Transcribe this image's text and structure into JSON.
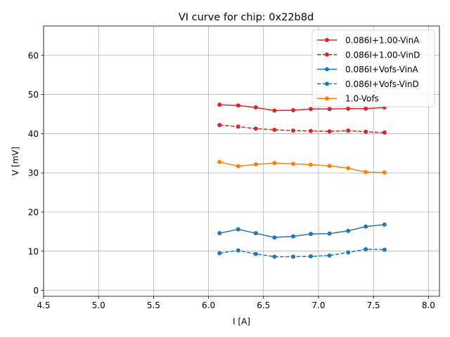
{
  "chart_data": {
    "type": "line",
    "title": "VI curve for chip: 0x22b8d",
    "xlabel": "I [A]",
    "ylabel": "V [mV]",
    "xlim": [
      4.5,
      8.1
    ],
    "ylim": [
      -1.5,
      67.5
    ],
    "xticks": [
      4.5,
      5.0,
      5.5,
      6.0,
      6.5,
      7.0,
      7.5,
      8.0
    ],
    "xtick_labels": [
      "4.5",
      "5.0",
      "5.5",
      "6.0",
      "6.5",
      "7.0",
      "7.5",
      "8.0"
    ],
    "yticks": [
      0,
      10,
      20,
      30,
      40,
      50,
      60
    ],
    "ytick_labels": [
      "0",
      "10",
      "20",
      "30",
      "40",
      "50",
      "60"
    ],
    "grid": true,
    "legend_position": "top-right",
    "x": [
      6.1,
      6.27,
      6.43,
      6.6,
      6.77,
      6.93,
      7.1,
      7.27,
      7.43,
      7.6
    ],
    "series": [
      {
        "name": "0.086I+1.00-VinA",
        "color": "#d62728",
        "dashed": false,
        "values": [
          47.4,
          47.2,
          46.7,
          45.9,
          46.0,
          46.3,
          46.3,
          46.4,
          46.4,
          46.7
        ]
      },
      {
        "name": "0.086I+1.00-VinD",
        "color": "#d62728",
        "dashed": true,
        "values": [
          42.2,
          41.8,
          41.3,
          41.0,
          40.8,
          40.7,
          40.6,
          40.8,
          40.5,
          40.3
        ]
      },
      {
        "name": "0.086I+Vofs-VinA",
        "color": "#1f77b4",
        "dashed": false,
        "values": [
          14.6,
          15.6,
          14.6,
          13.5,
          13.8,
          14.4,
          14.5,
          15.2,
          16.3,
          16.8
        ]
      },
      {
        "name": "0.086I+Vofs-VinD",
        "color": "#1f77b4",
        "dashed": true,
        "values": [
          9.5,
          10.2,
          9.3,
          8.6,
          8.6,
          8.7,
          8.9,
          9.7,
          10.5,
          10.4
        ]
      },
      {
        "name": "1.0-Vofs",
        "color": "#ff7f0e",
        "dashed": false,
        "values": [
          32.8,
          31.7,
          32.2,
          32.5,
          32.3,
          32.1,
          31.8,
          31.2,
          30.2,
          30.1
        ]
      }
    ]
  }
}
